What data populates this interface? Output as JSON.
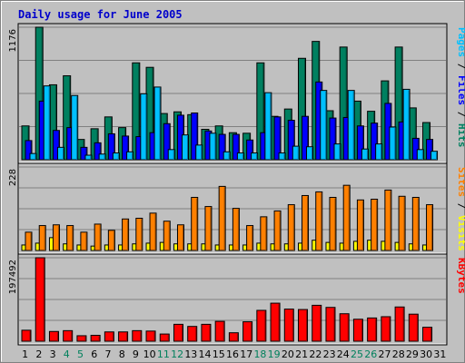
{
  "chart_data": {
    "type": "bar",
    "title": "Daily usage for June 2005",
    "days": [
      "1",
      "2",
      "3",
      "4",
      "5",
      "6",
      "7",
      "8",
      "9",
      "10",
      "11",
      "12",
      "13",
      "14",
      "15",
      "16",
      "17",
      "18",
      "19",
      "20",
      "21",
      "22",
      "23",
      "24",
      "25",
      "26",
      "27",
      "28",
      "29",
      "30",
      "31"
    ],
    "weekend_days": [
      "4",
      "5",
      "11",
      "12",
      "18",
      "19",
      "25",
      "26"
    ],
    "panels": [
      {
        "id": "top",
        "ymax_label": "1176",
        "ymax": 1176,
        "legend": [
          {
            "text": "Pages",
            "color": "#00c0ff"
          },
          {
            "text": " / ",
            "color": "#000000"
          },
          {
            "text": "Files",
            "color": "#0000ff"
          },
          {
            "text": " / ",
            "color": "#000000"
          },
          {
            "text": "Hits",
            "color": "#008060"
          }
        ],
        "series": [
          {
            "name": "Hits",
            "color": "#008060",
            "values": [
              300,
              1176,
              665,
              745,
              180,
              275,
              380,
              285,
              860,
              820,
              410,
              425,
              400,
              270,
              300,
              240,
              235,
              860,
              385,
              450,
              900,
              1050,
              435,
              1000,
              520,
              430,
              700,
              1000,
              460,
              330,
              0
            ]
          },
          {
            "name": "Files",
            "color": "#0000ff",
            "values": [
              170,
              520,
              260,
              285,
              110,
              150,
              230,
              210,
              205,
              240,
              320,
              395,
              415,
              255,
              225,
              225,
              175,
              240,
              380,
              350,
              385,
              690,
              370,
              375,
              300,
              325,
              500,
              335,
              190,
              180,
              0
            ]
          },
          {
            "name": "Pages",
            "color": "#00c0ff",
            "values": [
              55,
              655,
              110,
              570,
              40,
              50,
              60,
              70,
              585,
              645,
              90,
              220,
              130,
              235,
              70,
              60,
              60,
              595,
              60,
              120,
              115,
              615,
              140,
              615,
              95,
              140,
              290,
              625,
              90,
              75,
              0
            ]
          }
        ]
      },
      {
        "id": "mid",
        "ymax_label": "228",
        "ymax": 228,
        "legend": [
          {
            "text": "Sites",
            "color": "#ff8000"
          },
          {
            "text": " / ",
            "color": "#000000"
          },
          {
            "text": "Visits",
            "color": "#ffff00"
          }
        ],
        "series": [
          {
            "name": "Visits",
            "color": "#ffff00",
            "values": [
              15,
              20,
              35,
              18,
              15,
              12,
              15,
              15,
              18,
              20,
              22,
              18,
              18,
              18,
              15,
              15,
              15,
              20,
              18,
              18,
              20,
              28,
              22,
              20,
              25,
              28,
              25,
              22,
              18,
              15,
              0
            ]
          },
          {
            "name": "Sites",
            "color": "#ff8000",
            "values": [
              50,
              68,
              70,
              68,
              50,
              72,
              55,
              86,
              88,
              102,
              80,
              70,
              145,
              120,
              175,
              115,
              68,
              92,
              108,
              125,
              150,
              160,
              145,
              178,
              138,
              140,
              165,
              148,
              145,
              125,
              0
            ]
          }
        ]
      },
      {
        "id": "bottom",
        "ymax_label": "197492",
        "ymax": 197492,
        "legend": [
          {
            "text": "KBytes",
            "color": "#ff0000"
          }
        ],
        "series": [
          {
            "name": "KBytes",
            "color": "#ff0000",
            "values": [
              26000,
              197492,
              23000,
              25000,
              13000,
              14000,
              22000,
              22000,
              25000,
              24000,
              17000,
              40000,
              35000,
              40000,
              47000,
              20000,
              46000,
              73000,
              90000,
              76000,
              75000,
              85000,
              80000,
              65000,
              52000,
              55000,
              58000,
              81000,
              64000,
              33000,
              0
            ]
          }
        ]
      }
    ]
  }
}
